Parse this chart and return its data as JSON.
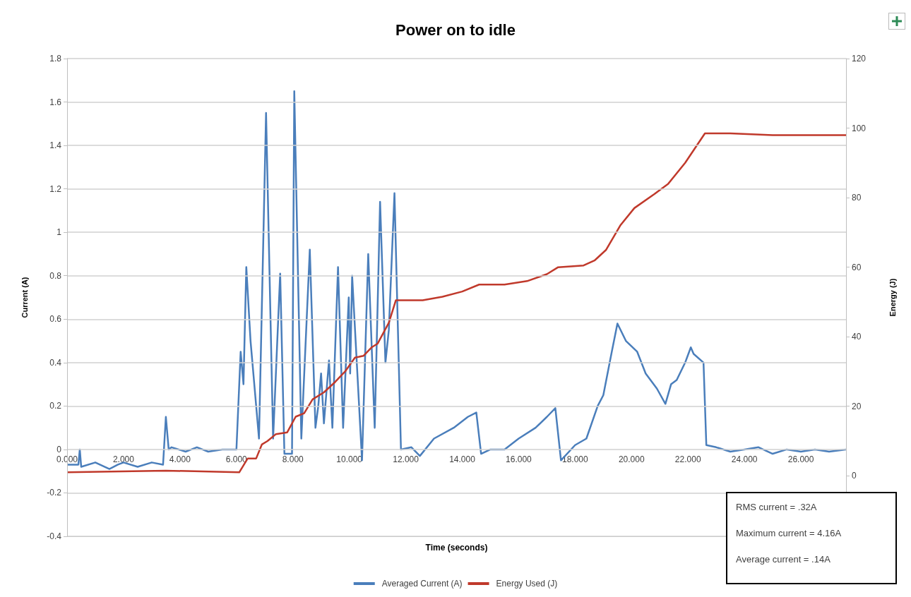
{
  "chart_data": {
    "type": "line",
    "title": "Power on to idle",
    "xlabel": "Time (seconds)",
    "ylabel": "Current (A)",
    "y2label": "Energy (J)",
    "xlim": [
      0,
      27.6
    ],
    "xticks": [
      {
        "value": 0,
        "label": "0.000"
      },
      {
        "value": 2,
        "label": "2.000"
      },
      {
        "value": 4,
        "label": "4.000"
      },
      {
        "value": 6,
        "label": "6.000"
      },
      {
        "value": 8,
        "label": "8.000"
      },
      {
        "value": 10,
        "label": "10.000"
      },
      {
        "value": 12,
        "label": "12.000"
      },
      {
        "value": 14,
        "label": "14.000"
      },
      {
        "value": 16,
        "label": "16.000"
      },
      {
        "value": 18,
        "label": "18.000"
      },
      {
        "value": 20,
        "label": "20.000"
      },
      {
        "value": 22,
        "label": "22.000"
      },
      {
        "value": 24,
        "label": "24.000"
      },
      {
        "value": 26,
        "label": "26.000"
      }
    ],
    "ylim": [
      -0.4,
      1.8
    ],
    "yticks": [
      -0.4,
      -0.2,
      0,
      0.2,
      0.4,
      0.6,
      0.8,
      1,
      1.2,
      1.4,
      1.6,
      1.8
    ],
    "y2lim": [
      -17.4,
      120
    ],
    "y2ticks": [
      0,
      20,
      40,
      60,
      80,
      100,
      120
    ],
    "grid": "y",
    "legend": "bottom",
    "marker": "none",
    "line_style": "solid",
    "annotations": [
      "RMS current = .32A",
      "Maximum current = 4.16A",
      "Average current = .14A"
    ],
    "series": [
      {
        "name": "Averaged Current (A)",
        "color": "#4a7ebb",
        "x": [
          0,
          0.4,
          0.45,
          0.5,
          1,
          1.5,
          1.8,
          2,
          2.5,
          3,
          3.4,
          3.5,
          3.6,
          3.7,
          4.2,
          4.6,
          5,
          5.5,
          6,
          6.15,
          6.25,
          6.35,
          6.5,
          6.8,
          7.05,
          7.3,
          7.55,
          7.7,
          7.97,
          8.05,
          8.3,
          8.6,
          8.8,
          8.9,
          9.0,
          9.1,
          9.28,
          9.4,
          9.6,
          9.78,
          9.98,
          10.03,
          10.1,
          10.45,
          10.67,
          10.9,
          11.09,
          11.28,
          11.4,
          11.6,
          11.83,
          12.2,
          12.5,
          13,
          13.7,
          14.2,
          14.5,
          14.67,
          15,
          15.5,
          16,
          16.6,
          17,
          17.3,
          17.5,
          18,
          18.4,
          18.8,
          19,
          19.3,
          19.5,
          19.8,
          20.2,
          20.5,
          20.9,
          21.2,
          21.4,
          21.6,
          21.9,
          22.1,
          22.2,
          22.55,
          22.65,
          23,
          23.5,
          24,
          24.5,
          25,
          25.5,
          26,
          26.5,
          27,
          27.6
        ],
        "values": [
          -0.07,
          -0.07,
          0,
          -0.08,
          -0.06,
          -0.09,
          -0.07,
          -0.06,
          -0.08,
          -0.06,
          -0.07,
          0.15,
          0,
          0.01,
          -0.01,
          0.01,
          -0.01,
          0,
          0,
          0.45,
          0.3,
          0.84,
          0.5,
          0.05,
          1.55,
          0.05,
          0.81,
          -0.02,
          -0.02,
          1.65,
          0.05,
          0.92,
          0.1,
          0.2,
          0.35,
          0.12,
          0.41,
          0.1,
          0.84,
          0.1,
          0.7,
          0.35,
          0.8,
          -0.05,
          0.9,
          0.1,
          1.14,
          0.4,
          0.55,
          1.18,
          0,
          0.01,
          -0.03,
          0.05,
          0.1,
          0.15,
          0.17,
          -0.02,
          0,
          0,
          0.05,
          0.1,
          0.15,
          0.19,
          -0.05,
          0.02,
          0.05,
          0.2,
          0.25,
          0.45,
          0.58,
          0.5,
          0.45,
          0.35,
          0.28,
          0.21,
          0.3,
          0.32,
          0.4,
          0.47,
          0.44,
          0.4,
          0.02,
          0.01,
          -0.01,
          0,
          0.01,
          -0.02,
          0,
          -0.01,
          0,
          -0.01,
          0
        ]
      },
      {
        "name": "Energy Used (J)",
        "color": "#c0392b",
        "axis": "y2",
        "x": [
          0,
          3.5,
          6.1,
          6.4,
          6.7,
          6.9,
          7.1,
          7.4,
          7.8,
          8.1,
          8.4,
          8.7,
          9.1,
          9.5,
          9.85,
          10.2,
          10.5,
          10.8,
          11,
          11.4,
          11.65,
          12.6,
          13.3,
          14,
          14.6,
          15.5,
          16.3,
          17,
          17.4,
          18.3,
          18.7,
          19.1,
          19.6,
          20.1,
          20.8,
          21.3,
          21.9,
          22.6,
          23.5,
          25,
          27.6
        ],
        "values": [
          1,
          1.5,
          1,
          5,
          5,
          9,
          10,
          12,
          12.5,
          17,
          18,
          22,
          24,
          27,
          30,
          34,
          34.5,
          37,
          38,
          44,
          50.5,
          50.5,
          51.5,
          53,
          55,
          55,
          56,
          58,
          60,
          60.5,
          62,
          65,
          72,
          77,
          81,
          84,
          90,
          98.5,
          98.5,
          98,
          98
        ]
      }
    ]
  }
}
